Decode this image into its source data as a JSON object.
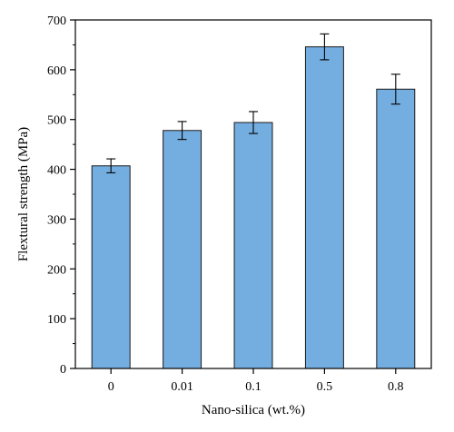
{
  "chart_data": {
    "type": "bar",
    "categories": [
      "0",
      "0.01",
      "0.1",
      "0.5",
      "0.8"
    ],
    "values": [
      407,
      478,
      494,
      646,
      561
    ],
    "errors": [
      14,
      18,
      22,
      26,
      30
    ],
    "xlabel": "Nano-silica (wt.%)",
    "ylabel": "Flextural strength (MPa)",
    "ylim": [
      0,
      700
    ],
    "yticks": [
      0,
      100,
      200,
      300,
      400,
      500,
      600,
      700
    ],
    "grid": false,
    "bar_color": "#74ade0",
    "edge_color": "#1a1a1a"
  }
}
